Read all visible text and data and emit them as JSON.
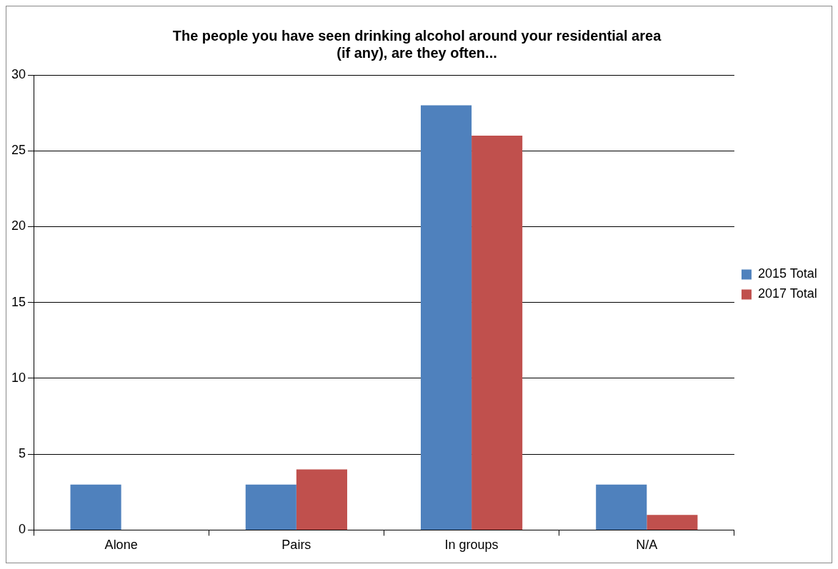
{
  "chart_data": {
    "type": "bar",
    "title": "The people you have seen drinking alcohol around your residential area (if any), are they often...",
    "categories": [
      "Alone",
      "Pairs",
      "In groups",
      "N/A"
    ],
    "series": [
      {
        "name": "2015 Total",
        "color": "#4f81bd",
        "values": [
          3,
          3,
          28,
          3
        ]
      },
      {
        "name": "2017 Total",
        "color": "#c0504d",
        "values": [
          null,
          4,
          26,
          1
        ]
      }
    ],
    "ylim": [
      0,
      30
    ],
    "yticks": [
      0,
      5,
      10,
      15,
      20,
      25,
      30
    ],
    "grid": "y",
    "legend": "right"
  }
}
